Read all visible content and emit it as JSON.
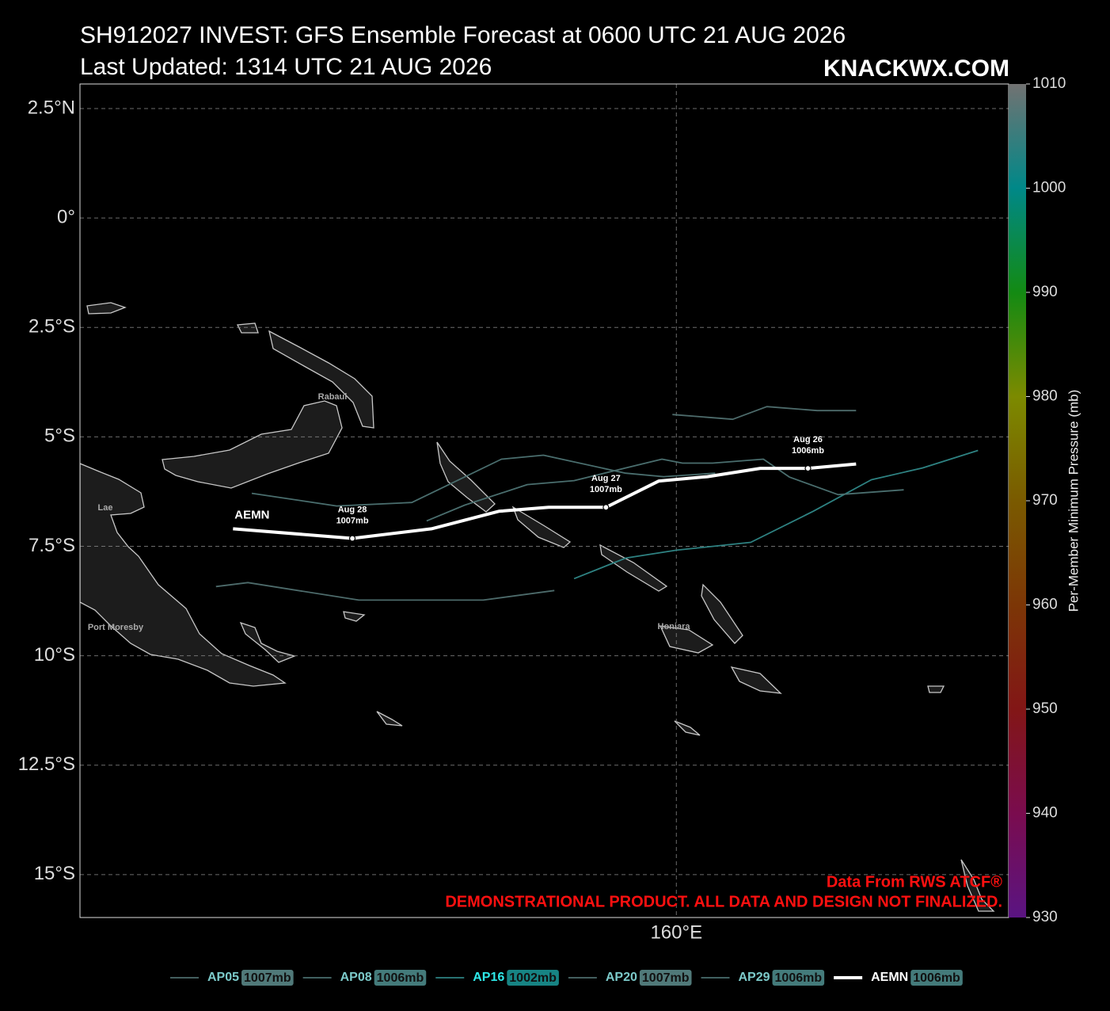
{
  "chart_data": {
    "type": "track",
    "title": "SH912027 INVEST: GFS Ensemble Forecast at 0600 UTC 21 AUG 2026",
    "subtitle": "Last Updated: 1314 UTC 21 AUG 2026",
    "brand": "KNACKWX.COM",
    "credit": "Data From RWS ATCF®",
    "disclaimer": "DEMONSTRATIONAL PRODUCT. ALL DATA AND DESIGN NOT FINALIZED.",
    "places": [
      "Rabaul",
      "Lae",
      "Port Moresby",
      "Honiara"
    ],
    "xlim": [
      146.36,
      167.6
    ],
    "ylim": [
      -15.98,
      3.06
    ],
    "xticks": [
      {
        "value": 160,
        "label": "160°E"
      }
    ],
    "yticks": [
      {
        "value": 2.5,
        "label": "2.5°N"
      },
      {
        "value": 0,
        "label": "0°"
      },
      {
        "value": -2.5,
        "label": "2.5°S"
      },
      {
        "value": -5,
        "label": "5°S"
      },
      {
        "value": -7.5,
        "label": "7.5°S"
      },
      {
        "value": -10,
        "label": "10°S"
      },
      {
        "value": -12.5,
        "label": "12.5°S"
      },
      {
        "value": -15,
        "label": "15°S"
      }
    ],
    "grid": true,
    "colorbar": {
      "label": "Per-Member Minimum Pressure (mb)",
      "range": [
        930,
        1010
      ],
      "ticks": [
        930,
        940,
        950,
        960,
        970,
        980,
        990,
        1000,
        1010
      ],
      "colors": [
        "#5a1482",
        "#7a0c4e",
        "#821616",
        "#7c3606",
        "#7a5a00",
        "#7c8a00",
        "#138a13",
        "#008888",
        "#727272"
      ]
    },
    "series": [
      {
        "name": "AP05",
        "color": "#4d6b6b",
        "min_pressure": 1007,
        "min_pressure_label": "1007mb",
        "x": [
          159.91,
          161.29,
          162.07,
          163.22,
          164.11
        ],
        "y": [
          -4.49,
          -4.6,
          -4.31,
          -4.4,
          -4.4
        ]
      },
      {
        "name": "AP08",
        "color": "#4a6e6e",
        "min_pressure": 1006,
        "min_pressure_label": "1006mb",
        "x": [
          150.29,
          152.23,
          153.95,
          156.0,
          156.96,
          158.84,
          159.71,
          160.89
        ],
        "y": [
          -6.29,
          -6.58,
          -6.5,
          -5.51,
          -5.42,
          -5.83,
          -5.91,
          -5.83
        ]
      },
      {
        "name": "AP16",
        "color": "#2e8282",
        "min_pressure": 1002,
        "min_pressure_label": "1002mb",
        "x": [
          157.66,
          158.84,
          160.0,
          161.7,
          163.13,
          164.46,
          165.63,
          166.9
        ],
        "y": [
          -8.24,
          -7.77,
          -7.59,
          -7.41,
          -6.7,
          -5.98,
          -5.71,
          -5.31
        ]
      },
      {
        "name": "AP20",
        "color": "#4d6b6b",
        "min_pressure": 1007,
        "min_pressure_label": "1007mb",
        "x": [
          149.47,
          150.2,
          152.74,
          155.58,
          157.21
        ],
        "y": [
          -8.42,
          -8.33,
          -8.73,
          -8.73,
          -8.51
        ]
      },
      {
        "name": "AP29",
        "color": "#4a6e6e",
        "min_pressure": 1006,
        "min_pressure_label": "1006mb",
        "x": [
          154.29,
          155.16,
          156.59,
          157.66,
          158.84,
          159.67,
          160.14,
          160.83,
          161.99,
          162.59,
          163.7,
          165.2
        ],
        "y": [
          -6.92,
          -6.56,
          -6.09,
          -6.0,
          -5.71,
          -5.51,
          -5.6,
          -5.6,
          -5.51,
          -5.92,
          -6.32,
          -6.21
        ]
      },
      {
        "name": "AEMN",
        "color": "#ffffff",
        "min_pressure": 1006,
        "min_pressure_label": "1006mb",
        "x": [
          149.86,
          152.59,
          154.4,
          155.94,
          157.08,
          158.39,
          159.6,
          160.71,
          161.92,
          163.01,
          164.11
        ],
        "y": [
          -7.1,
          -7.32,
          -7.1,
          -6.7,
          -6.61,
          -6.61,
          -6.01,
          -5.91,
          -5.72,
          -5.72,
          -5.62
        ],
        "point_dates": [
          null,
          "Aug 28",
          null,
          null,
          null,
          "Aug 27",
          null,
          null,
          null,
          "Aug 26",
          null
        ],
        "point_pressures": [
          null,
          "1007mb",
          null,
          null,
          null,
          "1007mb",
          null,
          null,
          null,
          "1006mb",
          null
        ]
      }
    ]
  }
}
